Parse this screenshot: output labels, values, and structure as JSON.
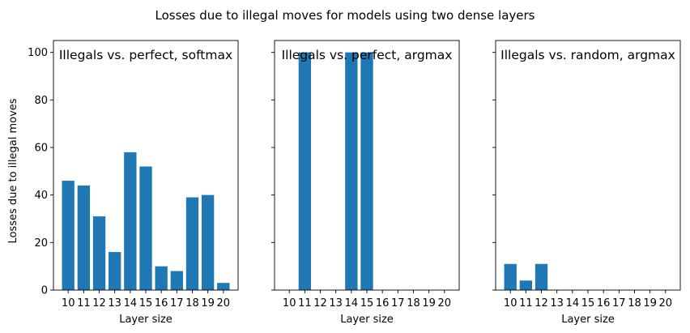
{
  "figure": {
    "suptitle": "Losses due to illegal moves for models using two dense layers",
    "ylabel": "Losses due to illegal moves",
    "bar_color": "#1f77b4"
  },
  "chart_data": [
    {
      "type": "bar",
      "title": "Illegals vs. perfect, softmax",
      "xlabel": "Layer size",
      "ylabel": "Losses due to illegal moves",
      "categories": [
        "10",
        "11",
        "12",
        "13",
        "14",
        "15",
        "16",
        "17",
        "18",
        "19",
        "20"
      ],
      "values": [
        46,
        44,
        31,
        16,
        58,
        52,
        10,
        8,
        39,
        40,
        3
      ],
      "ylim": [
        0,
        105
      ],
      "yticks": [
        0,
        20,
        40,
        60,
        80,
        100
      ],
      "grid": false
    },
    {
      "type": "bar",
      "title": "Illegals vs. perfect, argmax",
      "xlabel": "Layer size",
      "ylabel": "",
      "categories": [
        "10",
        "11",
        "12",
        "13",
        "14",
        "15",
        "16",
        "17",
        "18",
        "19",
        "20"
      ],
      "values": [
        0,
        100,
        0,
        0,
        100,
        100,
        0,
        0,
        0,
        0,
        0
      ],
      "ylim": [
        0,
        105
      ],
      "yticks": [
        0,
        20,
        40,
        60,
        80,
        100
      ],
      "grid": false
    },
    {
      "type": "bar",
      "title": "Illegals vs. random, argmax",
      "xlabel": "Layer size",
      "ylabel": "",
      "categories": [
        "10",
        "11",
        "12",
        "13",
        "14",
        "15",
        "16",
        "17",
        "18",
        "19",
        "20"
      ],
      "values": [
        11,
        4,
        11,
        0,
        0,
        0,
        0,
        0,
        0,
        0,
        0
      ],
      "ylim": [
        0,
        105
      ],
      "yticks": [
        0,
        20,
        40,
        60,
        80,
        100
      ],
      "grid": false
    }
  ]
}
